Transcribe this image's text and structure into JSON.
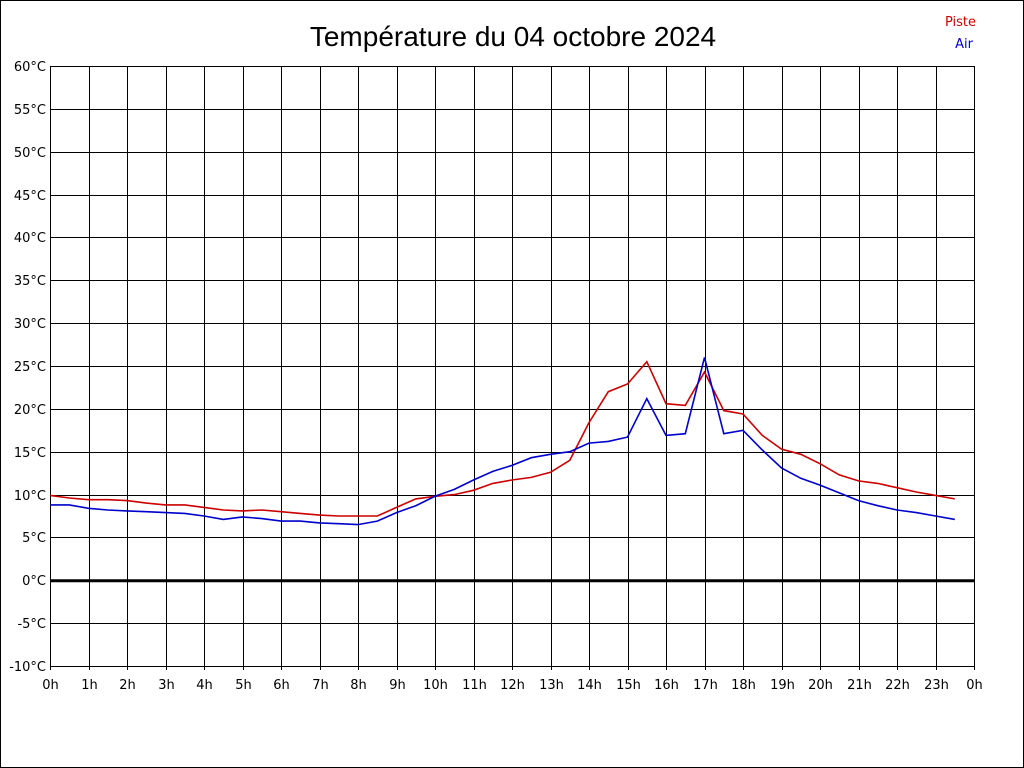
{
  "chart_data": {
    "type": "line",
    "title": "Température du 04 octobre 2024",
    "xlabel": "",
    "ylabel": "",
    "x_tick_labels": [
      "0h",
      "1h",
      "2h",
      "3h",
      "4h",
      "5h",
      "6h",
      "7h",
      "8h",
      "9h",
      "10h",
      "11h",
      "12h",
      "13h",
      "14h",
      "15h",
      "16h",
      "17h",
      "18h",
      "19h",
      "20h",
      "21h",
      "22h",
      "23h",
      "0h"
    ],
    "y_ticks": [
      -10,
      -5,
      0,
      5,
      10,
      15,
      20,
      25,
      30,
      35,
      40,
      45,
      50,
      55,
      60
    ],
    "y_unit": "°C",
    "xlim": [
      0,
      24
    ],
    "ylim": [
      -10,
      60
    ],
    "grid": true,
    "zero_line": true,
    "legend_position": "top-right",
    "x": [
      0,
      0.5,
      1,
      1.5,
      2,
      2.5,
      3,
      3.5,
      4,
      4.5,
      5,
      5.5,
      6,
      6.5,
      7,
      7.5,
      8,
      8.5,
      9,
      9.5,
      10,
      10.5,
      11,
      11.5,
      12,
      12.5,
      13,
      13.5,
      14,
      14.5,
      15,
      15.5,
      16,
      16.5,
      17,
      17.5,
      18,
      18.5,
      19,
      19.5,
      20,
      20.5,
      21,
      21.5,
      22,
      22.5,
      23,
      23.5
    ],
    "series": [
      {
        "name": "Piste",
        "color": "#cc0000",
        "values": [
          9.9,
          9.6,
          9.4,
          9.4,
          9.3,
          9.0,
          8.8,
          8.8,
          8.5,
          8.2,
          8.1,
          8.2,
          8.0,
          7.8,
          7.6,
          7.5,
          7.5,
          7.5,
          8.5,
          9.5,
          9.8,
          10.0,
          10.5,
          11.3,
          11.7,
          12.0,
          12.6,
          14.0,
          18.4,
          22.0,
          22.9,
          25.5,
          20.6,
          20.4,
          24.3,
          19.8,
          19.4,
          16.9,
          15.3,
          14.7,
          13.6,
          12.3,
          11.6,
          11.3,
          10.8,
          10.3,
          9.9,
          9.5
        ]
      },
      {
        "name": "Air",
        "color": "#0000cc",
        "values": [
          8.8,
          8.8,
          8.4,
          8.2,
          8.1,
          8.0,
          7.9,
          7.8,
          7.5,
          7.1,
          7.4,
          7.2,
          6.9,
          6.9,
          6.7,
          6.6,
          6.5,
          6.9,
          7.9,
          8.7,
          9.8,
          10.6,
          11.7,
          12.7,
          13.4,
          14.3,
          14.7,
          15.0,
          16.0,
          16.2,
          16.7,
          21.2,
          16.9,
          17.1,
          26.0,
          17.1,
          17.5,
          15.2,
          13.1,
          11.9,
          11.1,
          10.2,
          9.3,
          8.7,
          8.2,
          7.9,
          7.5,
          7.1
        ]
      }
    ]
  }
}
